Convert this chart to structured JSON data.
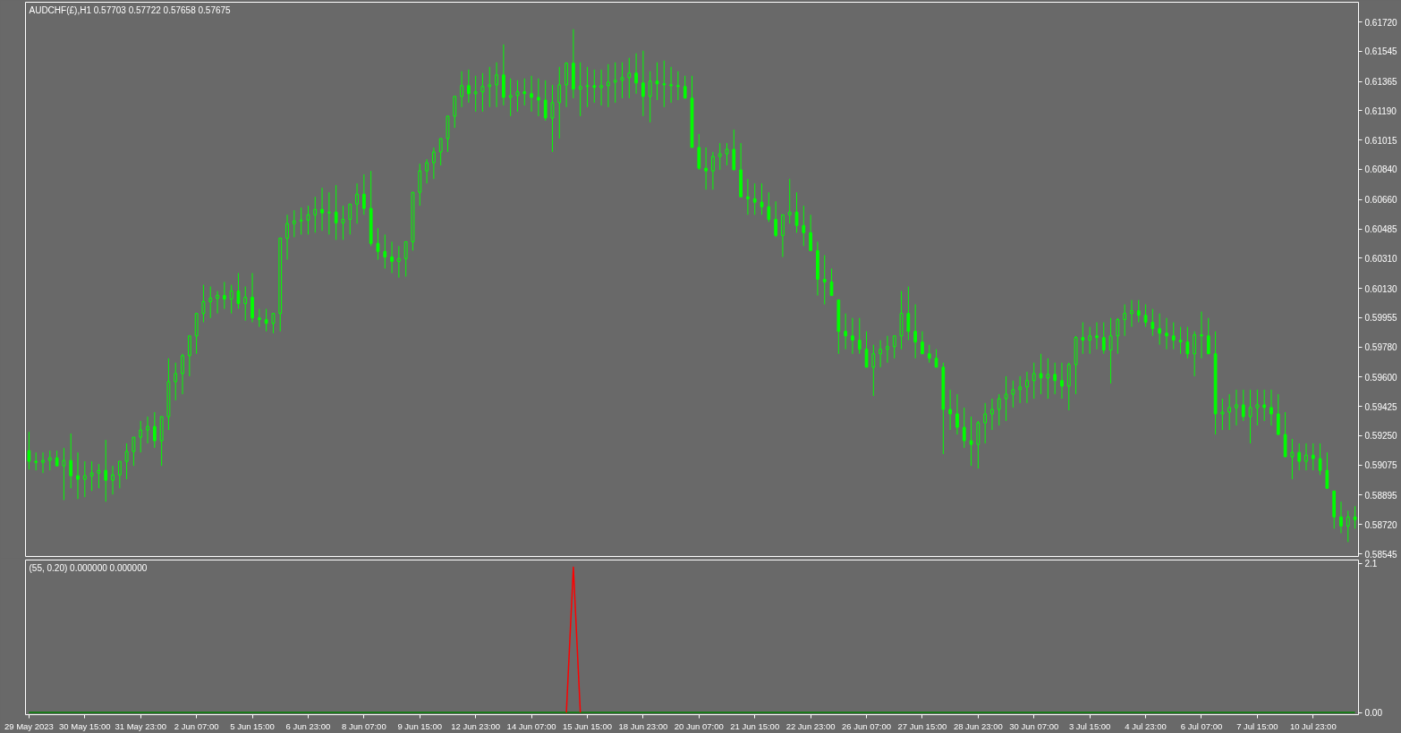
{
  "chart_data": [
    {
      "type": "candlestick",
      "title": "AUDCHF(£),H1 0.57703 0.57722 0.57658 0.57675",
      "color": "#00ff00",
      "tick_labels": "y",
      "categories": [
        null,
        null,
        null,
        null,
        null,
        null,
        null,
        null,
        null,
        null,
        null,
        null,
        null,
        null,
        null,
        null,
        null,
        null,
        null,
        null,
        null,
        null,
        null,
        null,
        null,
        null,
        null,
        null,
        null,
        null,
        null,
        null,
        null,
        null,
        null,
        null,
        null,
        null,
        null,
        null,
        null,
        null,
        null,
        null,
        null,
        null,
        null,
        null,
        null,
        null,
        null,
        null,
        null,
        null,
        null,
        null,
        null,
        null,
        null,
        null,
        null,
        null,
        null,
        null,
        null,
        null,
        null,
        null,
        null,
        null,
        null,
        null,
        null,
        null,
        null,
        null,
        null,
        null,
        null,
        null,
        null,
        null,
        null,
        null,
        null,
        null,
        null,
        null,
        null,
        null,
        null,
        null,
        null,
        null,
        null,
        null,
        null,
        null,
        null,
        null,
        null,
        null,
        null,
        null,
        null,
        null,
        null,
        null,
        null,
        null,
        null,
        null,
        null,
        null,
        null,
        null,
        null,
        null,
        null,
        null,
        null,
        null,
        null,
        null,
        null,
        null,
        null,
        null,
        null,
        null,
        null,
        null,
        null,
        null,
        null,
        null,
        null,
        null,
        null,
        null,
        null,
        null,
        null,
        null,
        null,
        null,
        null,
        null,
        null,
        null,
        null,
        null,
        null,
        null,
        null,
        null,
        null,
        null,
        null,
        null,
        null,
        null,
        null,
        null,
        null,
        null,
        null,
        null,
        null,
        null,
        null,
        null,
        null,
        null,
        null,
        null,
        null,
        null,
        null,
        null,
        null,
        null,
        null,
        null,
        null,
        null,
        null,
        null,
        null,
        null,
        null
      ],
      "ylim": [
        0.58529,
        0.61838
      ],
      "yticks": [
        {
          "value": 0.6172,
          "label": "0.61720"
        },
        0.61545,
        0.61365,
        {
          "value": 0.6119,
          "label": "0.61190"
        },
        0.61015,
        {
          "value": 0.6084,
          "label": "0.60840"
        },
        {
          "value": 0.6066,
          "label": "0.60660"
        },
        0.60485,
        {
          "value": 0.6031,
          "label": "0.60310"
        },
        {
          "value": 0.6013,
          "label": "0.60130"
        },
        0.59955,
        {
          "value": 0.5978,
          "label": "0.59780"
        },
        {
          "value": 0.596,
          "label": "0.59600"
        },
        0.59425,
        {
          "value": 0.5925,
          "label": "0.59250"
        },
        0.59075,
        0.58895,
        {
          "value": 0.5872,
          "label": "0.58720"
        },
        0.58545
      ],
      "ohlc": [
        [
          0.59161,
          0.59273,
          0.59048,
          0.59097
        ],
        [
          0.59097,
          0.5915,
          0.59043,
          0.59091
        ],
        [
          0.59091,
          0.5915,
          0.59027,
          0.59102
        ],
        [
          0.59102,
          0.59161,
          0.59043,
          0.59118
        ],
        [
          0.59118,
          0.59161,
          0.5907,
          0.5907
        ],
        [
          0.5907,
          0.59177,
          0.58866,
          0.59102
        ],
        [
          0.59102,
          0.59263,
          0.58936,
          0.59011
        ],
        [
          0.59011,
          0.5915,
          0.58872,
          0.5899
        ],
        [
          0.5899,
          0.59097,
          0.58883,
          0.59011
        ],
        [
          0.59011,
          0.59097,
          0.5892,
          0.59027
        ],
        [
          0.59027,
          0.59081,
          0.58936,
          0.59043
        ],
        [
          0.59043,
          0.59225,
          0.58856,
          0.58984
        ],
        [
          0.58984,
          0.5907,
          0.58899,
          0.59016
        ],
        [
          0.59016,
          0.59097,
          0.58936,
          0.59097
        ],
        [
          0.59097,
          0.59204,
          0.5899,
          0.59156
        ],
        [
          0.59156,
          0.59241,
          0.5907,
          0.59241
        ],
        [
          0.59241,
          0.59338,
          0.5915,
          0.59284
        ],
        [
          0.59284,
          0.59364,
          0.59204,
          0.59305
        ],
        [
          0.59305,
          0.59391,
          0.59177,
          0.5922
        ],
        [
          0.5922,
          0.59364,
          0.5907,
          0.59364
        ],
        [
          0.59364,
          0.59712,
          0.59284,
          0.59573
        ],
        [
          0.59573,
          0.59686,
          0.59461,
          0.59621
        ],
        [
          0.59621,
          0.59739,
          0.59498,
          0.59728
        ],
        [
          0.59728,
          0.59846,
          0.59605,
          0.59846
        ],
        [
          0.59846,
          0.5998,
          0.59739,
          0.5998
        ],
        [
          0.5998,
          0.60151,
          0.59927,
          0.6005
        ],
        [
          0.6005,
          0.60141,
          0.59953,
          0.60071
        ],
        [
          0.60071,
          0.60114,
          0.5998,
          0.60087
        ],
        [
          0.60087,
          0.60168,
          0.60007,
          0.60066
        ],
        [
          0.60066,
          0.60151,
          0.5998,
          0.60114
        ],
        [
          0.60114,
          0.60221,
          0.60007,
          0.60039
        ],
        [
          0.60039,
          0.60141,
          0.59937,
          0.60076
        ],
        [
          0.60076,
          0.60221,
          0.59927,
          0.59953
        ],
        [
          0.59953,
          0.60007,
          0.599,
          0.59943
        ],
        [
          0.59943,
          0.60007,
          0.59873,
          0.59921
        ],
        [
          0.59921,
          0.5998,
          0.59862,
          0.5998
        ],
        [
          0.5998,
          0.6043,
          0.59873,
          0.6043
        ],
        [
          0.6043,
          0.60569,
          0.60301,
          0.60516
        ],
        [
          0.60516,
          0.60596,
          0.60435,
          0.60532
        ],
        [
          0.60532,
          0.60612,
          0.60451,
          0.60537
        ],
        [
          0.60537,
          0.60623,
          0.60451,
          0.60569
        ],
        [
          0.60569,
          0.60676,
          0.60462,
          0.60601
        ],
        [
          0.60601,
          0.6073,
          0.60473,
          0.6058
        ],
        [
          0.6058,
          0.60703,
          0.60451,
          0.60585
        ],
        [
          0.60585,
          0.60746,
          0.60419,
          0.60521
        ],
        [
          0.60521,
          0.60623,
          0.60419,
          0.60542
        ],
        [
          0.60542,
          0.60633,
          0.60451,
          0.60633
        ],
        [
          0.60633,
          0.60756,
          0.60516,
          0.60692
        ],
        [
          0.60692,
          0.6081,
          0.60569,
          0.60607
        ],
        [
          0.60607,
          0.60831,
          0.60382,
          0.60398
        ],
        [
          0.60398,
          0.60489,
          0.60301,
          0.6035
        ],
        [
          0.6035,
          0.60451,
          0.60248,
          0.60317
        ],
        [
          0.60317,
          0.60408,
          0.60221,
          0.60291
        ],
        [
          0.60291,
          0.60382,
          0.60194,
          0.60307
        ],
        [
          0.60307,
          0.60408,
          0.602,
          0.60408
        ],
        [
          0.60408,
          0.60703,
          0.60355,
          0.60703
        ],
        [
          0.60703,
          0.60874,
          0.60623,
          0.60831
        ],
        [
          0.60831,
          0.60901,
          0.60756,
          0.6088
        ],
        [
          0.6088,
          0.60971,
          0.60783,
          0.60944
        ],
        [
          0.60944,
          0.61024,
          0.60864,
          0.61024
        ],
        [
          0.61024,
          0.61158,
          0.60944,
          0.61158
        ],
        [
          0.61158,
          0.61276,
          0.61088,
          0.61276
        ],
        [
          0.61276,
          0.61426,
          0.61212,
          0.6134
        ],
        [
          0.6134,
          0.61436,
          0.61238,
          0.61292
        ],
        [
          0.61292,
          0.61399,
          0.61185,
          0.61303
        ],
        [
          0.61303,
          0.61415,
          0.61185,
          0.61335
        ],
        [
          0.61335,
          0.61452,
          0.61212,
          0.61345
        ],
        [
          0.61345,
          0.61479,
          0.61212,
          0.61404
        ],
        [
          0.61404,
          0.61586,
          0.61222,
          0.6127
        ],
        [
          0.6127,
          0.61383,
          0.61158,
          0.61281
        ],
        [
          0.61281,
          0.61372,
          0.61185,
          0.61303
        ],
        [
          0.61303,
          0.61383,
          0.61222,
          0.61292
        ],
        [
          0.61292,
          0.61399,
          0.61185,
          0.6127
        ],
        [
          0.6127,
          0.61383,
          0.61158,
          0.61254
        ],
        [
          0.61254,
          0.61372,
          0.61131,
          0.61147
        ],
        [
          0.61147,
          0.61345,
          0.60944,
          0.61238
        ],
        [
          0.61238,
          0.61452,
          0.61024,
          0.61345
        ],
        [
          0.61345,
          0.61479,
          0.61212,
          0.61474
        ],
        [
          0.61474,
          0.61677,
          0.61265,
          0.61319
        ],
        [
          0.61319,
          0.61479,
          0.61158,
          0.61335
        ],
        [
          0.61335,
          0.61452,
          0.61212,
          0.6134
        ],
        [
          0.6134,
          0.61436,
          0.61238,
          0.61329
        ],
        [
          0.61329,
          0.61436,
          0.61222,
          0.6134
        ],
        [
          0.6134,
          0.61468,
          0.61212,
          0.61361
        ],
        [
          0.61361,
          0.61479,
          0.61238,
          0.61372
        ],
        [
          0.61372,
          0.61479,
          0.61265,
          0.61388
        ],
        [
          0.61388,
          0.61506,
          0.61265,
          0.61415
        ],
        [
          0.61415,
          0.61533,
          0.61292,
          0.61356
        ],
        [
          0.61356,
          0.61549,
          0.61158,
          0.61276
        ],
        [
          0.61276,
          0.61426,
          0.61121,
          0.61367
        ],
        [
          0.61367,
          0.61479,
          0.61254,
          0.61351
        ],
        [
          0.61351,
          0.6149,
          0.61212,
          0.61345
        ],
        [
          0.61345,
          0.61452,
          0.61238,
          0.6134
        ],
        [
          0.6134,
          0.61426,
          0.61254,
          0.61335
        ],
        [
          0.61335,
          0.61399,
          0.61265,
          0.61265
        ],
        [
          0.61265,
          0.61399,
          0.60971,
          0.60971
        ],
        [
          0.60971,
          0.61051,
          0.60837,
          0.60847
        ],
        [
          0.60847,
          0.60971,
          0.60719,
          0.60831
        ],
        [
          0.60831,
          0.60944,
          0.60719,
          0.60917
        ],
        [
          0.60917,
          0.60997,
          0.60837,
          0.60933
        ],
        [
          0.60933,
          0.60997,
          0.60864,
          0.6096
        ],
        [
          0.6096,
          0.61078,
          0.60837,
          0.60837
        ],
        [
          0.60837,
          0.60997,
          0.60676,
          0.60676
        ],
        [
          0.60676,
          0.60783,
          0.60569,
          0.60665
        ],
        [
          0.60665,
          0.60756,
          0.60569,
          0.60644
        ],
        [
          0.60644,
          0.60756,
          0.60569,
          0.60617
        ],
        [
          0.60617,
          0.60703,
          0.60526,
          0.60542
        ],
        [
          0.60542,
          0.60649,
          0.60435,
          0.60446
        ],
        [
          0.60446,
          0.60569,
          0.60317,
          0.60569
        ],
        [
          0.60569,
          0.60783,
          0.60516,
          0.60585
        ],
        [
          0.60585,
          0.60703,
          0.60462,
          0.60505
        ],
        [
          0.60505,
          0.60623,
          0.60382,
          0.60462
        ],
        [
          0.60462,
          0.60569,
          0.60355,
          0.60355
        ],
        [
          0.60355,
          0.60408,
          0.60087,
          0.60184
        ],
        [
          0.60184,
          0.60328,
          0.60034,
          0.60168
        ],
        [
          0.60168,
          0.60248,
          0.60087,
          0.60087
        ],
        [
          0.6006,
          0.6006,
          0.59739,
          0.59873
        ],
        [
          0.59873,
          0.5998,
          0.59766,
          0.59846
        ],
        [
          0.59846,
          0.59953,
          0.59739,
          0.5982
        ],
        [
          0.5982,
          0.59953,
          0.59739,
          0.59766
        ],
        [
          0.59766,
          0.59873,
          0.59659,
          0.59659
        ],
        [
          0.59659,
          0.59793,
          0.59487,
          0.59739
        ],
        [
          0.59739,
          0.5982,
          0.59659,
          0.59766
        ],
        [
          0.59766,
          0.59846,
          0.59686,
          0.59782
        ],
        [
          0.59782,
          0.59846,
          0.59712,
          0.59846
        ],
        [
          0.59846,
          0.60114,
          0.59766,
          0.5998
        ],
        [
          0.5998,
          0.60141,
          0.5982,
          0.59873
        ],
        [
          0.59873,
          0.60034,
          0.59712,
          0.59809
        ],
        [
          0.59809,
          0.59873,
          0.59739,
          0.59739
        ],
        [
          0.59739,
          0.59793,
          0.59686,
          0.59712
        ],
        [
          0.59712,
          0.59766,
          0.59659,
          0.59659
        ],
        [
          0.59659,
          0.59686,
          0.5914,
          0.59407
        ],
        [
          0.59407,
          0.59525,
          0.59284,
          0.5938
        ],
        [
          0.5938,
          0.59498,
          0.59257,
          0.593
        ],
        [
          0.593,
          0.59418,
          0.59177,
          0.5922
        ],
        [
          0.5922,
          0.59364,
          0.5907,
          0.59198
        ],
        [
          0.59198,
          0.59338,
          0.59054,
          0.59327
        ],
        [
          0.59327,
          0.59445,
          0.59204,
          0.5938
        ],
        [
          0.5938,
          0.59471,
          0.59284,
          0.59407
        ],
        [
          0.59407,
          0.59498,
          0.59311,
          0.59471
        ],
        [
          0.59471,
          0.59605,
          0.59338,
          0.59498
        ],
        [
          0.59498,
          0.59579,
          0.59418,
          0.59525
        ],
        [
          0.59525,
          0.59605,
          0.59445,
          0.59541
        ],
        [
          0.59541,
          0.59632,
          0.59445,
          0.59579
        ],
        [
          0.59579,
          0.59686,
          0.59471,
          0.59621
        ],
        [
          0.59621,
          0.59739,
          0.59498,
          0.59595
        ],
        [
          0.59595,
          0.59712,
          0.59471,
          0.59616
        ],
        [
          0.59616,
          0.59686,
          0.59498,
          0.59579
        ],
        [
          0.59579,
          0.59686,
          0.59471,
          0.59546
        ],
        [
          0.59546,
          0.59686,
          0.59402,
          0.59675
        ],
        [
          0.59675,
          0.59846,
          0.59498,
          0.59836
        ],
        [
          0.59836,
          0.59927,
          0.59739,
          0.5982
        ],
        [
          0.5982,
          0.599,
          0.59739,
          0.59846
        ],
        [
          0.59846,
          0.59927,
          0.59766,
          0.59836
        ],
        [
          0.59836,
          0.59927,
          0.59739,
          0.59761
        ],
        [
          0.59761,
          0.59953,
          0.59562,
          0.59846
        ],
        [
          0.59846,
          0.59953,
          0.59739,
          0.59943
        ],
        [
          0.59943,
          0.60034,
          0.59846,
          0.5998
        ],
        [
          0.5998,
          0.6006,
          0.599,
          0.59996
        ],
        [
          0.59996,
          0.6006,
          0.59927,
          0.59969
        ],
        [
          0.59969,
          0.60034,
          0.599,
          0.59927
        ],
        [
          0.59927,
          0.60007,
          0.59846,
          0.59889
        ],
        [
          0.59889,
          0.5998,
          0.59793,
          0.59862
        ],
        [
          0.59862,
          0.59953,
          0.59766,
          0.59846
        ],
        [
          0.59846,
          0.59927,
          0.59766,
          0.5982
        ],
        [
          0.5982,
          0.599,
          0.59739,
          0.59809
        ],
        [
          0.59809,
          0.599,
          0.59712,
          0.59739
        ],
        [
          0.59739,
          0.59873,
          0.59605,
          0.59852
        ],
        [
          0.59852,
          0.59991,
          0.59712,
          0.59846
        ],
        [
          0.59846,
          0.59953,
          0.59739,
          0.59739
        ],
        [
          0.59739,
          0.59873,
          0.59257,
          0.5938
        ],
        [
          0.5938,
          0.59471,
          0.59284,
          0.59391
        ],
        [
          0.59391,
          0.59498,
          0.59284,
          0.59418
        ],
        [
          0.59418,
          0.59525,
          0.59311,
          0.59434
        ],
        [
          0.59434,
          0.59525,
          0.59338,
          0.59364
        ],
        [
          0.59364,
          0.59525,
          0.59204,
          0.59418
        ],
        [
          0.59418,
          0.59525,
          0.59311,
          0.59434
        ],
        [
          0.59434,
          0.59525,
          0.59338,
          0.59418
        ],
        [
          0.59418,
          0.59525,
          0.59311,
          0.5938
        ],
        [
          0.5938,
          0.59498,
          0.59257,
          0.59257
        ],
        [
          0.59257,
          0.59391,
          0.59124,
          0.59124
        ],
        [
          0.59124,
          0.59231,
          0.5899,
          0.5915
        ],
        [
          0.5915,
          0.59204,
          0.59043,
          0.59097
        ],
        [
          0.59097,
          0.59204,
          0.59043,
          0.59134
        ],
        [
          0.59134,
          0.59204,
          0.59043,
          0.59113
        ],
        [
          0.59113,
          0.59204,
          0.59016,
          0.59043
        ],
        [
          0.59043,
          0.5915,
          0.58936,
          0.58936
        ],
        [
          0.5892,
          0.5892,
          0.58695,
          0.58765
        ],
        [
          0.58765,
          0.58856,
          0.58668,
          0.58711
        ],
        [
          0.58711,
          0.58802,
          0.58615,
          0.58765
        ],
        [
          0.58765,
          0.58829,
          0.58695,
          0.58749
        ]
      ]
    },
    {
      "type": "line",
      "title": "(55, 0.20) 0.000000 0.000000",
      "categories": [
        "29 May 2023",
        null,
        null,
        null,
        null,
        null,
        null,
        null,
        "30 May 15:00",
        null,
        null,
        null,
        null,
        null,
        null,
        null,
        "31 May 23:00",
        null,
        null,
        null,
        null,
        null,
        null,
        null,
        "2 Jun 07:00",
        null,
        null,
        null,
        null,
        null,
        null,
        null,
        "5 Jun 15:00",
        null,
        null,
        null,
        null,
        null,
        null,
        null,
        "6 Jun 23:00",
        null,
        null,
        null,
        null,
        null,
        null,
        null,
        "8 Jun 07:00",
        null,
        null,
        null,
        null,
        null,
        null,
        null,
        "9 Jun 15:00",
        null,
        null,
        null,
        null,
        null,
        null,
        null,
        "12 Jun 23:00",
        null,
        null,
        null,
        null,
        null,
        null,
        null,
        "14 Jun 07:00",
        null,
        null,
        null,
        null,
        null,
        null,
        null,
        "15 Jun 15:00",
        null,
        null,
        null,
        null,
        null,
        null,
        null,
        "18 Jun 23:00",
        null,
        null,
        null,
        null,
        null,
        null,
        null,
        "20 Jun 07:00",
        null,
        null,
        null,
        null,
        null,
        null,
        null,
        "21 Jun 15:00",
        null,
        null,
        null,
        null,
        null,
        null,
        null,
        "22 Jun 23:00",
        null,
        null,
        null,
        null,
        null,
        null,
        null,
        "26 Jun 07:00",
        null,
        null,
        null,
        null,
        null,
        null,
        null,
        "27 Jun 15:00",
        null,
        null,
        null,
        null,
        null,
        null,
        null,
        "28 Jun 23:00",
        null,
        null,
        null,
        null,
        null,
        null,
        null,
        "30 Jun 07:00",
        null,
        null,
        null,
        null,
        null,
        null,
        null,
        "3 Jul 15:00",
        null,
        null,
        null,
        null,
        null,
        null,
        null,
        "4 Jul 23:00",
        null,
        null,
        null,
        null,
        null,
        null,
        null,
        "6 Jul 07:00",
        null,
        null,
        null,
        null,
        null,
        null,
        null,
        "7 Jul 15:00",
        null,
        null,
        null,
        null,
        null,
        null,
        null,
        "10 Jul 23:00",
        null,
        null,
        null,
        null,
        null,
        null
      ],
      "ylim": [
        -0.03,
        2.15
      ],
      "yticks": [
        2.1,
        {
          "value": 0,
          "label": "0.00"
        }
      ],
      "series": [
        {
          "color": "#008000",
          "values": [
            0,
            0,
            0,
            0,
            0,
            0,
            0,
            0,
            0,
            0,
            0,
            0,
            0,
            0,
            0,
            0,
            0,
            0,
            0,
            0,
            0,
            0,
            0,
            0,
            0,
            0,
            0,
            0,
            0,
            0,
            0,
            0,
            0,
            0,
            0,
            0,
            0,
            0,
            0,
            0,
            0,
            0,
            0,
            0,
            0,
            0,
            0,
            0,
            0,
            0,
            0,
            0,
            0,
            0,
            0,
            0,
            0,
            0,
            0,
            0,
            0,
            0,
            0,
            0,
            0,
            0,
            0,
            0,
            0,
            0,
            0,
            0,
            0,
            0,
            0,
            0,
            0,
            0,
            0,
            0,
            0,
            0,
            0,
            0,
            0,
            0,
            0,
            0,
            0,
            0,
            0,
            0,
            0,
            0,
            0,
            0,
            0,
            0,
            0,
            0,
            0,
            0,
            0,
            0,
            0,
            0,
            0,
            0,
            0,
            0,
            0,
            0,
            0,
            0,
            0,
            0,
            0,
            0,
            0,
            0,
            0,
            0,
            0,
            0,
            0,
            0,
            0,
            0,
            0,
            0,
            0,
            0,
            0,
            0,
            0,
            0,
            0,
            0,
            0,
            0,
            0,
            0,
            0,
            0,
            0,
            0,
            0,
            0,
            0,
            0,
            0,
            0,
            0,
            0,
            0,
            0,
            0,
            0,
            0,
            0,
            0,
            0,
            0,
            0,
            0,
            0,
            0,
            0,
            0,
            0,
            0,
            0,
            0,
            0,
            0,
            0,
            0,
            0,
            0,
            0,
            0,
            0,
            0,
            0,
            0,
            0,
            0,
            0,
            0,
            0,
            0
          ]
        },
        {
          "color": "#ff0000",
          "values": [
            null,
            null,
            null,
            null,
            null,
            null,
            null,
            null,
            null,
            null,
            null,
            null,
            null,
            null,
            null,
            null,
            null,
            null,
            null,
            null,
            null,
            null,
            null,
            null,
            null,
            null,
            null,
            null,
            null,
            null,
            null,
            null,
            null,
            null,
            null,
            null,
            null,
            null,
            null,
            null,
            null,
            null,
            null,
            null,
            null,
            null,
            null,
            null,
            null,
            null,
            null,
            null,
            null,
            null,
            null,
            null,
            null,
            null,
            null,
            null,
            null,
            null,
            null,
            null,
            null,
            null,
            null,
            null,
            null,
            null,
            null,
            null,
            null,
            null,
            null,
            null,
            null,
            0,
            2.05,
            0,
            null,
            null,
            null,
            null,
            null,
            null,
            null,
            null,
            null,
            null,
            null,
            null,
            null,
            null,
            null,
            null,
            null,
            null,
            null,
            null,
            null,
            null,
            null,
            null,
            null,
            null,
            null,
            null,
            null,
            null,
            null,
            null,
            null,
            null,
            null,
            null,
            null,
            null,
            null,
            null,
            null,
            null,
            null,
            null,
            null,
            null,
            null,
            null,
            null,
            null,
            null,
            null,
            null,
            null,
            null,
            null,
            null,
            null,
            null,
            null,
            null,
            null,
            null,
            null,
            null,
            null,
            null,
            null,
            null,
            null,
            null,
            null,
            null,
            null,
            null,
            null,
            null,
            null,
            null,
            null,
            null,
            null,
            null,
            null,
            null,
            null,
            null,
            null,
            null,
            null,
            null,
            null,
            null,
            null,
            null,
            null,
            null,
            null,
            null,
            null,
            null,
            null,
            null,
            null,
            null,
            null,
            null,
            null,
            null,
            null,
            null
          ]
        }
      ]
    }
  ]
}
